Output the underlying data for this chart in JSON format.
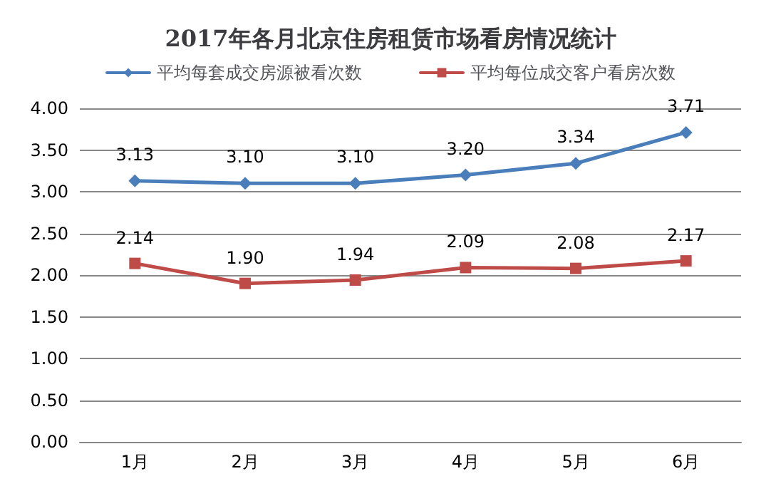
{
  "chart_data": {
    "type": "line",
    "title": "2017年各月北京住房租赁市场看房情况统计",
    "categories": [
      "1月",
      "2月",
      "3月",
      "4月",
      "5月",
      "6月"
    ],
    "series": [
      {
        "name": "平均每套成交房源被看次数",
        "color": "#4a7ebb",
        "marker": "diamond",
        "values": [
          3.13,
          3.1,
          3.1,
          3.2,
          3.34,
          3.71
        ],
        "value_labels": [
          "3.13",
          "3.10",
          "3.10",
          "3.20",
          "3.34",
          "3.71"
        ]
      },
      {
        "name": "平均每位成交客户看房次数",
        "color": "#be4b48",
        "marker": "square",
        "values": [
          2.14,
          1.9,
          1.94,
          2.09,
          2.08,
          2.17
        ],
        "value_labels": [
          "2.14",
          "1.90",
          "1.94",
          "2.09",
          "2.08",
          "2.17"
        ]
      }
    ],
    "ylim": [
      0,
      4
    ],
    "yticks": [
      {
        "value": 0,
        "label": "0.00"
      },
      {
        "value": 0.5,
        "label": "0.50"
      },
      {
        "value": 1,
        "label": "1.00"
      },
      {
        "value": 1.5,
        "label": "1.50"
      },
      {
        "value": 2,
        "label": "2.00"
      },
      {
        "value": 2.5,
        "label": "2.50"
      },
      {
        "value": 3,
        "label": "3.00"
      },
      {
        "value": 3.5,
        "label": "3.50"
      },
      {
        "value": 4,
        "label": "4.00"
      }
    ],
    "grid": "y",
    "legend": "top",
    "line_style": "solid"
  }
}
